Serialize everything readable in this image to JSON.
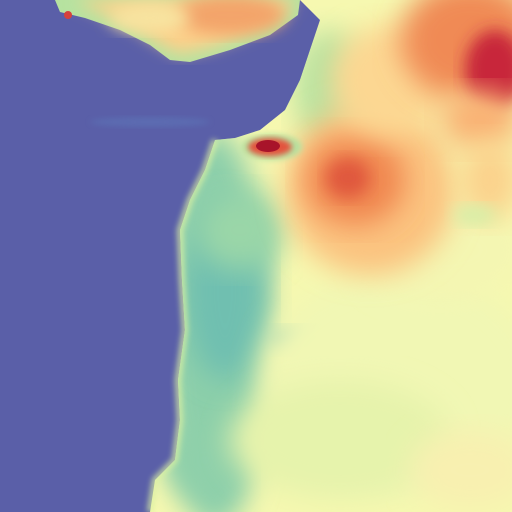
{
  "map": {
    "type": "raster-heatmap",
    "colormap": "spectral-reversed",
    "colors": {
      "water": "#5a5fa8",
      "low": "#6fc3a8",
      "low_mid": "#b6e2a0",
      "mid": "#f6f8b0",
      "mid_high": "#fdd08a",
      "high": "#f3884f",
      "very_high": "#d6423c",
      "extreme": "#a8142a"
    },
    "regions": [
      {
        "name": "open-water",
        "level": "water"
      },
      {
        "name": "northern-peninsula",
        "level": "mid-high"
      },
      {
        "name": "coastal-strip",
        "level": "low"
      },
      {
        "name": "inland-plain",
        "level": "mid"
      },
      {
        "name": "central-hotspot",
        "level": "high"
      },
      {
        "name": "small-island-hotspot",
        "level": "extreme"
      },
      {
        "name": "northeast-hotspot",
        "level": "very-high"
      }
    ],
    "legend": null,
    "labels": []
  }
}
